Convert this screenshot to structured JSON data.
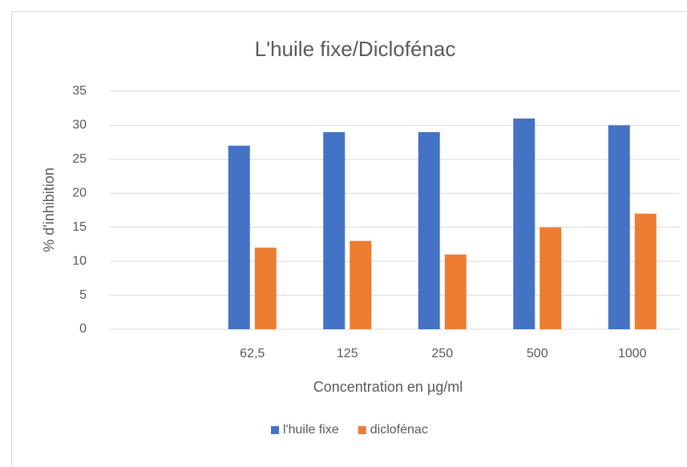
{
  "chart_data": {
    "type": "bar",
    "title": "L'huile fixe/Diclofénac",
    "x_label": "Concentration en µg/ml",
    "y_label": "% d'inhibition",
    "categories": [
      null,
      "62,5",
      "125",
      "250",
      "500",
      "1000"
    ],
    "series": [
      {
        "name": "l'huile fixe",
        "color": "#4472c4",
        "values": [
          null,
          27,
          29,
          29,
          31,
          30
        ]
      },
      {
        "name": "diclofénac",
        "color": "#ed7d31",
        "values": [
          null,
          12,
          13,
          11,
          15,
          17
        ]
      }
    ],
    "ylim": [
      0,
      35
    ],
    "yticks": [
      0,
      5,
      10,
      15,
      20,
      25,
      30,
      35
    ],
    "grid": true,
    "legend": "bottom"
  }
}
